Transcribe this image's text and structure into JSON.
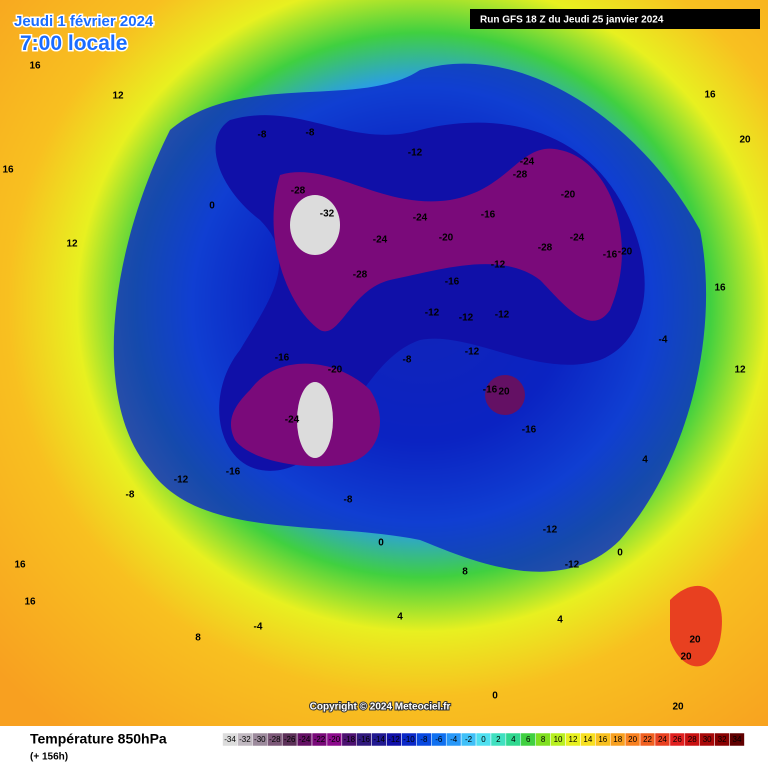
{
  "header": {
    "date": "Jeudi 1 février 2024",
    "time": "7:00 locale",
    "run": "Run GFS 18 Z du Jeudi 25 janvier 2024"
  },
  "copyright": "Copyright © 2024 Meteociel.fr",
  "footer": {
    "title": "Température 850hPa",
    "lead": "(+ 156h)"
  },
  "colorbar": {
    "ticks": [
      -34,
      -32,
      -30,
      -28,
      -26,
      -24,
      -22,
      -20,
      -18,
      -16,
      -14,
      -12,
      -10,
      -8,
      -6,
      -4,
      -2,
      0,
      2,
      4,
      6,
      8,
      10,
      12,
      14,
      16,
      18,
      20,
      22,
      24,
      26,
      28,
      30,
      32,
      34
    ],
    "colors": [
      "#dcdcdc",
      "#c0b8c0",
      "#9c8a9c",
      "#7c5878",
      "#5c3058",
      "#641064",
      "#780878",
      "#8c0a8c",
      "#4c1070",
      "#30187c",
      "#201890",
      "#1010a8",
      "#0a28c8",
      "#0848e0",
      "#1070f0",
      "#2898f8",
      "#40c0f8",
      "#50e0f0",
      "#40e0c0",
      "#30d890",
      "#40d040",
      "#80e020",
      "#b8f020",
      "#e8f020",
      "#f8e020",
      "#f8c020",
      "#f8a020",
      "#f88020",
      "#f06020",
      "#e84020",
      "#e02020",
      "#c81010",
      "#a80808",
      "#880000",
      "#600000"
    ]
  },
  "map_labels": [
    16,
    12,
    16,
    12,
    0,
    -8,
    -8,
    -12,
    -24,
    -28,
    -20,
    -28,
    -32,
    -24,
    -20,
    -24,
    -16,
    -28,
    -24,
    -16,
    -20,
    -28,
    -16,
    -12,
    -12,
    -12,
    -12,
    -12,
    -8,
    -16,
    20,
    -16,
    -20,
    -24,
    -16,
    -16,
    -12,
    -8,
    -8,
    0,
    8,
    -12,
    -12,
    0,
    20,
    20,
    20,
    16,
    20,
    16,
    16,
    16,
    8,
    -4,
    4,
    0,
    4,
    4,
    -4,
    12
  ]
}
